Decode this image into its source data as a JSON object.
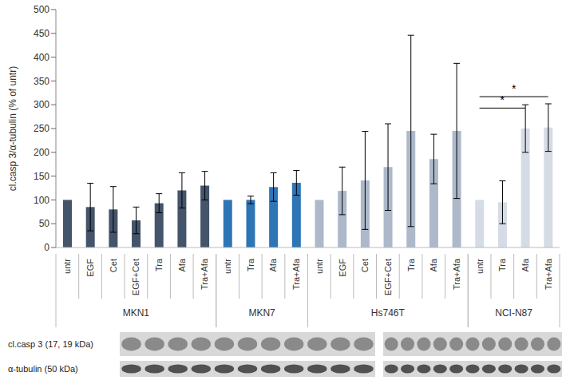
{
  "chart_data": {
    "type": "bar",
    "y_label": "cl.casp 3/α-tubulin (% of untr)",
    "categories": [
      "untr",
      "EGF",
      "Cet",
      "EGF+Cet",
      "Tra",
      "Afa",
      "Tra+Afa",
      "untr",
      "Tra",
      "Afa",
      "Tra+Afa",
      "untr",
      "EGF",
      "Cet",
      "EGF+Cet",
      "Tra",
      "Afa",
      "Tra+Afa",
      "untr",
      "Tra",
      "Afa",
      "Tra+Afa"
    ],
    "groups": [
      "MKN1",
      "MKN1",
      "MKN1",
      "MKN1",
      "MKN1",
      "MKN1",
      "MKN1",
      "MKN7",
      "MKN7",
      "MKN7",
      "MKN7",
      "Hs746T",
      "Hs746T",
      "Hs746T",
      "Hs746T",
      "Hs746T",
      "Hs746T",
      "Hs746T",
      "NCI-N87",
      "NCI-N87",
      "NCI-N87",
      "NCI-N87"
    ],
    "values": [
      100,
      85,
      80,
      57,
      93,
      120,
      130,
      100,
      100,
      127,
      136,
      100,
      119,
      141,
      169,
      245,
      186,
      245,
      100,
      95,
      250,
      252
    ],
    "errors": [
      0,
      50,
      48,
      28,
      20,
      37,
      30,
      0,
      8,
      30,
      26,
      0,
      50,
      103,
      91,
      201,
      52,
      142,
      0,
      45,
      50,
      50
    ],
    "colors": [
      "#44546a",
      "#44546a",
      "#44546a",
      "#44546a",
      "#44546a",
      "#44546a",
      "#44546a",
      "#2e75b6",
      "#2e75b6",
      "#2e75b6",
      "#2e75b6",
      "#adb9ca",
      "#adb9ca",
      "#adb9ca",
      "#adb9ca",
      "#adb9ca",
      "#adb9ca",
      "#adb9ca",
      "#d6dce5",
      "#d6dce5",
      "#d6dce5",
      "#d6dce5"
    ],
    "ylim": [
      0,
      500
    ],
    "yticks": [
      0,
      50,
      100,
      150,
      200,
      250,
      300,
      350,
      400,
      450,
      500
    ],
    "grid": false,
    "significance": [
      {
        "from": 18,
        "to": 20,
        "y": 293,
        "label": "*"
      },
      {
        "from": 18,
        "to": 21,
        "y": 317,
        "label": "*"
      }
    ],
    "annotations": [
      {
        "text": "cl.casp 3 (17, 19 kDa)"
      },
      {
        "text": "α-tubulin (50 kDa)"
      }
    ]
  }
}
